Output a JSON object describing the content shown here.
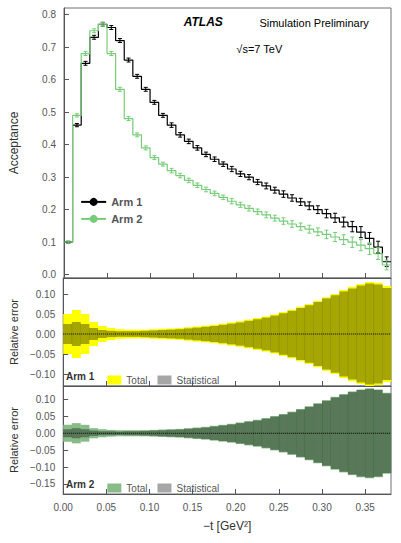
{
  "chart_data": [
    {
      "type": "step",
      "title": "ATLAS",
      "subtitle": "Simulation Preliminary",
      "annotations": [
        "√s=7 TeV"
      ],
      "ylabel": "Acceptance",
      "xlim": [
        0.0,
        0.38
      ],
      "ylim": [
        -0.01,
        0.82
      ],
      "xticks": [
        {
          "value": 0,
          "label": "0.00"
        },
        0.05,
        {
          "value": 0.1,
          "label": "0.10"
        },
        0.15,
        {
          "value": 0.2,
          "label": "0.20"
        },
        0.25,
        {
          "value": 0.3,
          "label": "0.30"
        },
        0.35
      ],
      "yticks": [
        {
          "value": 0,
          "label": "0.0"
        },
        0.1,
        0.2,
        0.3,
        0.4,
        0.5,
        0.6,
        0.7,
        0.8
      ],
      "grid": false,
      "legend": "lower left",
      "tick_labels": "y",
      "bins": [
        0.0,
        0.01,
        0.02,
        0.03,
        0.04,
        0.05,
        0.06,
        0.07,
        0.08,
        0.09,
        0.1,
        0.11,
        0.12,
        0.13,
        0.14,
        0.15,
        0.16,
        0.17,
        0.18,
        0.19,
        0.2,
        0.21,
        0.22,
        0.23,
        0.24,
        0.25,
        0.26,
        0.27,
        0.28,
        0.29,
        0.3,
        0.31,
        0.32,
        0.33,
        0.34,
        0.35,
        0.36,
        0.37,
        0.38
      ],
      "series": [
        {
          "name": "Arm 1",
          "color": "#000000",
          "values": [
            0.1,
            0.46,
            0.65,
            0.73,
            0.77,
            0.76,
            0.72,
            0.66,
            0.61,
            0.57,
            0.53,
            0.49,
            0.46,
            0.43,
            0.41,
            0.39,
            0.37,
            0.355,
            0.34,
            0.325,
            0.31,
            0.3,
            0.285,
            0.273,
            0.26,
            0.248,
            0.236,
            0.224,
            0.212,
            0.2,
            0.188,
            0.175,
            0.162,
            0.148,
            0.131,
            0.112,
            0.085,
            0.04
          ],
          "errors": [
            0.003,
            0.005,
            0.006,
            0.006,
            0.006,
            0.006,
            0.006,
            0.006,
            0.006,
            0.006,
            0.006,
            0.006,
            0.007,
            0.007,
            0.007,
            0.007,
            0.007,
            0.007,
            0.007,
            0.008,
            0.008,
            0.008,
            0.008,
            0.009,
            0.009,
            0.01,
            0.01,
            0.011,
            0.012,
            0.012,
            0.013,
            0.014,
            0.015,
            0.016,
            0.017,
            0.018,
            0.018,
            0.015
          ]
        },
        {
          "name": "Arm 2",
          "color": "#77cc77",
          "values": [
            0.1,
            0.49,
            0.68,
            0.75,
            0.77,
            0.68,
            0.57,
            0.48,
            0.43,
            0.39,
            0.36,
            0.34,
            0.32,
            0.305,
            0.29,
            0.275,
            0.262,
            0.25,
            0.238,
            0.226,
            0.215,
            0.204,
            0.194,
            0.184,
            0.174,
            0.165,
            0.156,
            0.148,
            0.14,
            0.132,
            0.124,
            0.116,
            0.108,
            0.1,
            0.091,
            0.08,
            0.065,
            0.03
          ],
          "errors": [
            0.003,
            0.005,
            0.006,
            0.006,
            0.006,
            0.006,
            0.006,
            0.006,
            0.006,
            0.006,
            0.006,
            0.006,
            0.007,
            0.007,
            0.007,
            0.007,
            0.007,
            0.007,
            0.007,
            0.008,
            0.008,
            0.008,
            0.008,
            0.009,
            0.009,
            0.01,
            0.01,
            0.011,
            0.012,
            0.012,
            0.013,
            0.014,
            0.015,
            0.016,
            0.017,
            0.018,
            0.018,
            0.015
          ]
        }
      ]
    },
    {
      "type": "band",
      "legend_title": "Arm 1",
      "ylabel": "Relative error",
      "xlim": [
        0.0,
        0.38
      ],
      "ylim": [
        -0.13,
        0.14
      ],
      "xticks": [
        {
          "value": 0,
          "label": "0.00"
        },
        0.05,
        {
          "value": 0.1,
          "label": "0.10"
        },
        0.15,
        {
          "value": 0.2,
          "label": "0.20"
        },
        0.25,
        {
          "value": 0.3,
          "label": "0.30"
        },
        0.35
      ],
      "yticks": [
        {
          "value": -0.1,
          "label": "−0.10"
        },
        {
          "value": -0.05,
          "label": "−0.05"
        },
        {
          "value": 0,
          "label": "0.00"
        },
        0.05,
        {
          "value": 0.1,
          "label": "0.10"
        }
      ],
      "grid": false,
      "legend": "lower left",
      "tick_labels": "y",
      "reference_line": 0,
      "bins": [
        0.0,
        0.01,
        0.02,
        0.03,
        0.04,
        0.05,
        0.06,
        0.07,
        0.08,
        0.09,
        0.1,
        0.11,
        0.12,
        0.13,
        0.14,
        0.15,
        0.16,
        0.17,
        0.18,
        0.19,
        0.2,
        0.21,
        0.22,
        0.23,
        0.24,
        0.25,
        0.26,
        0.27,
        0.28,
        0.29,
        0.3,
        0.31,
        0.32,
        0.33,
        0.34,
        0.35,
        0.36,
        0.37,
        0.38
      ],
      "series": [
        {
          "name": "Total",
          "color": "#ffff00",
          "upper": [
            0.05,
            0.06,
            0.05,
            0.03,
            0.02,
            0.015,
            0.012,
            0.011,
            0.011,
            0.011,
            0.012,
            0.013,
            0.014,
            0.015,
            0.017,
            0.019,
            0.021,
            0.023,
            0.026,
            0.029,
            0.032,
            0.036,
            0.04,
            0.044,
            0.049,
            0.055,
            0.061,
            0.068,
            0.075,
            0.083,
            0.092,
            0.1,
            0.11,
            0.118,
            0.125,
            0.13,
            0.128,
            0.12
          ],
          "lower": [
            -0.05,
            -0.06,
            -0.05,
            -0.03,
            -0.02,
            -0.015,
            -0.012,
            -0.011,
            -0.011,
            -0.011,
            -0.012,
            -0.013,
            -0.014,
            -0.015,
            -0.017,
            -0.019,
            -0.021,
            -0.023,
            -0.026,
            -0.029,
            -0.032,
            -0.036,
            -0.04,
            -0.044,
            -0.049,
            -0.055,
            -0.061,
            -0.068,
            -0.075,
            -0.083,
            -0.092,
            -0.1,
            -0.11,
            -0.118,
            -0.125,
            -0.13,
            -0.128,
            -0.12
          ]
        },
        {
          "name": "Statistical",
          "color": "#000000",
          "upper": [
            0.025,
            0.03,
            0.025,
            0.015,
            0.01,
            0.008,
            0.007,
            0.007,
            0.007,
            0.008,
            0.009,
            0.01,
            0.011,
            0.012,
            0.014,
            0.016,
            0.018,
            0.02,
            0.023,
            0.026,
            0.029,
            0.033,
            0.037,
            0.041,
            0.046,
            0.052,
            0.058,
            0.065,
            0.072,
            0.08,
            0.089,
            0.097,
            0.106,
            0.114,
            0.121,
            0.126,
            0.124,
            0.115
          ],
          "lower": [
            -0.025,
            -0.03,
            -0.025,
            -0.015,
            -0.01,
            -0.008,
            -0.007,
            -0.007,
            -0.007,
            -0.008,
            -0.009,
            -0.01,
            -0.011,
            -0.012,
            -0.014,
            -0.016,
            -0.018,
            -0.02,
            -0.023,
            -0.026,
            -0.029,
            -0.033,
            -0.037,
            -0.041,
            -0.046,
            -0.052,
            -0.058,
            -0.065,
            -0.072,
            -0.08,
            -0.089,
            -0.097,
            -0.106,
            -0.114,
            -0.121,
            -0.126,
            -0.124,
            -0.115
          ]
        }
      ]
    },
    {
      "type": "band",
      "legend_title": "Arm 2",
      "ylabel": "Relative error",
      "xlabel": "−t [GeV²]",
      "xlim": [
        0.0,
        0.38
      ],
      "ylim": [
        -0.18,
        0.14
      ],
      "xticks": [
        {
          "value": 0,
          "label": "0.00"
        },
        0.05,
        {
          "value": 0.1,
          "label": "0.10"
        },
        0.15,
        {
          "value": 0.2,
          "label": "0.20"
        },
        0.25,
        {
          "value": 0.3,
          "label": "0.30"
        },
        0.35
      ],
      "yticks": [
        {
          "value": -0.15,
          "label": "−0.15"
        },
        {
          "value": -0.1,
          "label": "−0.10"
        },
        {
          "value": -0.05,
          "label": "−0.05"
        },
        {
          "value": 0,
          "label": "0.00"
        },
        0.05,
        {
          "value": 0.1,
          "label": "0.10"
        }
      ],
      "grid": false,
      "legend": "lower left",
      "reference_line": 0,
      "bins": [
        0.0,
        0.01,
        0.02,
        0.03,
        0.04,
        0.05,
        0.06,
        0.07,
        0.08,
        0.09,
        0.1,
        0.11,
        0.12,
        0.13,
        0.14,
        0.15,
        0.16,
        0.17,
        0.18,
        0.19,
        0.2,
        0.21,
        0.22,
        0.23,
        0.24,
        0.25,
        0.26,
        0.27,
        0.28,
        0.29,
        0.3,
        0.31,
        0.32,
        0.33,
        0.34,
        0.35,
        0.36,
        0.37,
        0.38
      ],
      "series": [
        {
          "name": "Total",
          "color": "#88bb88",
          "upper": [
            0.025,
            0.03,
            0.025,
            0.015,
            0.012,
            0.01,
            0.009,
            0.009,
            0.009,
            0.009,
            0.01,
            0.011,
            0.012,
            0.013,
            0.015,
            0.017,
            0.019,
            0.022,
            0.025,
            0.028,
            0.032,
            0.036,
            0.04,
            0.045,
            0.051,
            0.057,
            0.064,
            0.072,
            0.08,
            0.089,
            0.098,
            0.108,
            0.116,
            0.124,
            0.13,
            0.133,
            0.13,
            0.12
          ],
          "lower": [
            -0.025,
            -0.03,
            -0.025,
            -0.015,
            -0.012,
            -0.01,
            -0.009,
            -0.009,
            -0.009,
            -0.009,
            -0.01,
            -0.011,
            -0.012,
            -0.013,
            -0.015,
            -0.017,
            -0.019,
            -0.022,
            -0.025,
            -0.028,
            -0.032,
            -0.036,
            -0.04,
            -0.045,
            -0.051,
            -0.057,
            -0.064,
            -0.072,
            -0.08,
            -0.089,
            -0.098,
            -0.108,
            -0.116,
            -0.124,
            -0.13,
            -0.133,
            -0.13,
            -0.12
          ]
        },
        {
          "name": "Statistical",
          "color": "#000000",
          "upper": [
            0.012,
            0.015,
            0.012,
            0.008,
            0.006,
            0.006,
            0.005,
            0.006,
            0.006,
            0.007,
            0.008,
            0.009,
            0.01,
            0.011,
            0.013,
            0.015,
            0.017,
            0.02,
            0.023,
            0.026,
            0.03,
            0.034,
            0.038,
            0.043,
            0.049,
            0.055,
            0.062,
            0.07,
            0.078,
            0.087,
            0.096,
            0.106,
            0.114,
            0.122,
            0.128,
            0.131,
            0.128,
            0.118
          ],
          "lower": [
            -0.012,
            -0.015,
            -0.012,
            -0.008,
            -0.006,
            -0.006,
            -0.005,
            -0.006,
            -0.006,
            -0.007,
            -0.008,
            -0.009,
            -0.01,
            -0.011,
            -0.013,
            -0.015,
            -0.017,
            -0.02,
            -0.023,
            -0.026,
            -0.03,
            -0.034,
            -0.038,
            -0.043,
            -0.049,
            -0.055,
            -0.062,
            -0.07,
            -0.078,
            -0.087,
            -0.096,
            -0.106,
            -0.114,
            -0.122,
            -0.128,
            -0.131,
            -0.128,
            -0.118
          ]
        }
      ]
    }
  ]
}
